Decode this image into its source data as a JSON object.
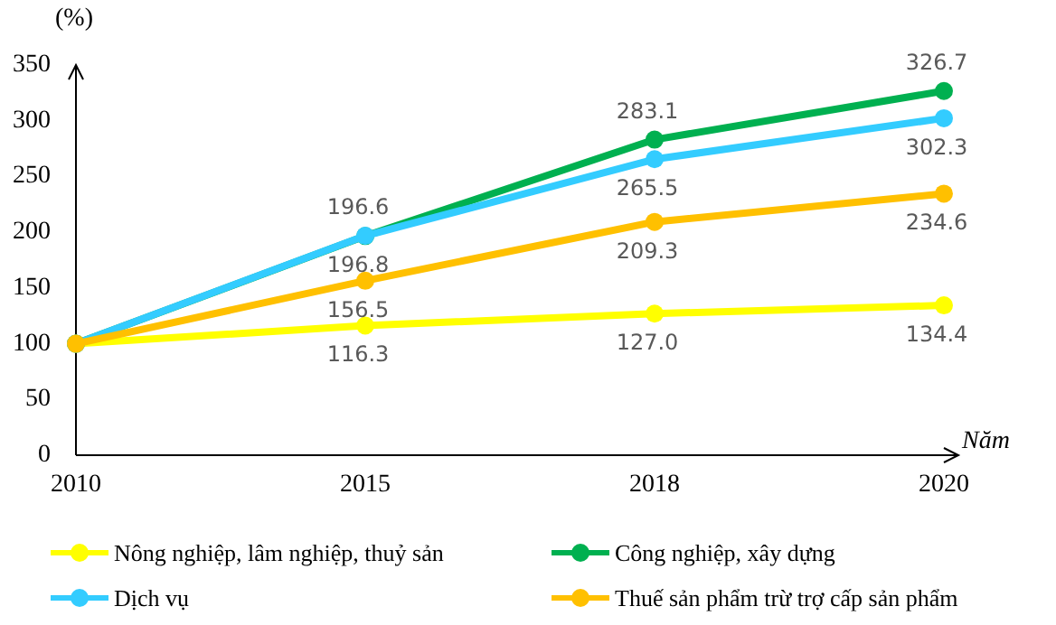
{
  "chart_data": {
    "type": "line",
    "ylabel": "(%)",
    "xlabel": "Năm",
    "categories": [
      "2010",
      "2015",
      "2018",
      "2020"
    ],
    "ylim": [
      0,
      350
    ],
    "yticks": [
      0,
      50,
      100,
      150,
      200,
      250,
      300,
      350
    ],
    "grid": false,
    "legend": "bottom",
    "marker": "circle",
    "line_style": "solid",
    "series": [
      {
        "name": "Nông nghiệp, lâm nghiệp, thuỷ sản",
        "color": "#ffff00",
        "values": [
          100,
          116.3,
          127.0,
          134.4
        ],
        "value_labels": [
          null,
          "116.3",
          "127.0",
          "134.4"
        ]
      },
      {
        "name": "Công nghiệp, xây dựng",
        "color": "#00b050",
        "values": [
          100,
          196.6,
          283.1,
          326.7
        ],
        "value_labels": [
          null,
          "196.6",
          "283.1",
          "326.7"
        ]
      },
      {
        "name": "Dịch vụ",
        "color": "#33ccff",
        "values": [
          100,
          196.8,
          265.5,
          302.3
        ],
        "value_labels": [
          null,
          "196.8",
          "265.5",
          "302.3"
        ]
      },
      {
        "name": "Thuế sản phẩm trừ trợ cấp sản phẩm",
        "color": "#ffc000",
        "values": [
          100,
          156.5,
          209.3,
          234.6
        ],
        "value_labels": [
          null,
          "156.5",
          "209.3",
          "234.6"
        ]
      }
    ]
  }
}
